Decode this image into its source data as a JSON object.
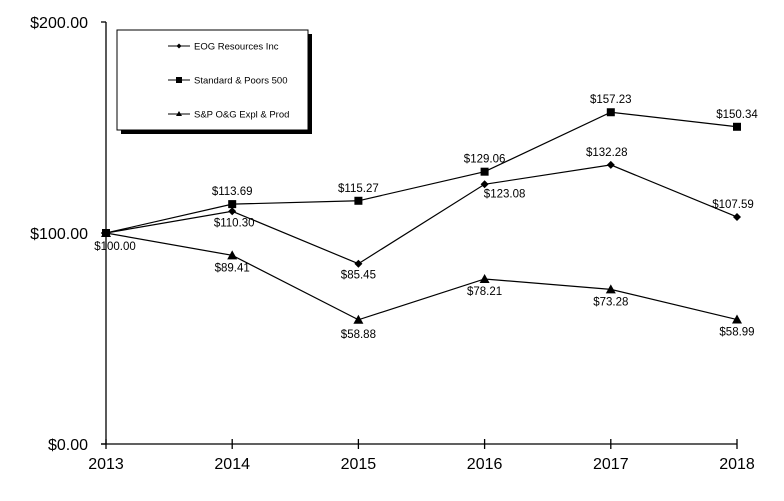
{
  "chart_data": {
    "type": "line",
    "title": "",
    "xlabel": "",
    "ylabel": "",
    "categories": [
      "2013",
      "2014",
      "2015",
      "2016",
      "2017",
      "2018"
    ],
    "ylim": [
      0,
      200
    ],
    "yticks": [
      "$0.00",
      "$100.00",
      "$200.00"
    ],
    "grid": false,
    "legend_position": "top-left (inside plot)",
    "series": [
      {
        "name": "EOG Resources Inc",
        "marker": "diamond",
        "values": [
          100.0,
          110.3,
          85.45,
          123.08,
          132.28,
          107.59
        ],
        "labels": [
          "$100.00",
          "$110.30",
          "$85.45",
          "$123.08",
          "$132.28",
          "$107.59"
        ]
      },
      {
        "name": "Standard & Poors 500",
        "marker": "square",
        "values": [
          100.0,
          113.69,
          115.27,
          129.06,
          157.23,
          150.34
        ],
        "labels": [
          "$100.00",
          "$113.69",
          "$115.27",
          "$129.06",
          "$157.23",
          "$150.34"
        ]
      },
      {
        "name": "S&P O&G Expl & Prod",
        "marker": "triangle",
        "values": [
          100.0,
          89.41,
          58.88,
          78.21,
          73.28,
          58.99
        ],
        "labels": [
          "$100.00",
          "$89.41",
          "$58.88",
          "$78.21",
          "$73.28",
          "$58.99"
        ]
      }
    ]
  },
  "colors": {
    "line": "#000000",
    "background": "#ffffff"
  }
}
